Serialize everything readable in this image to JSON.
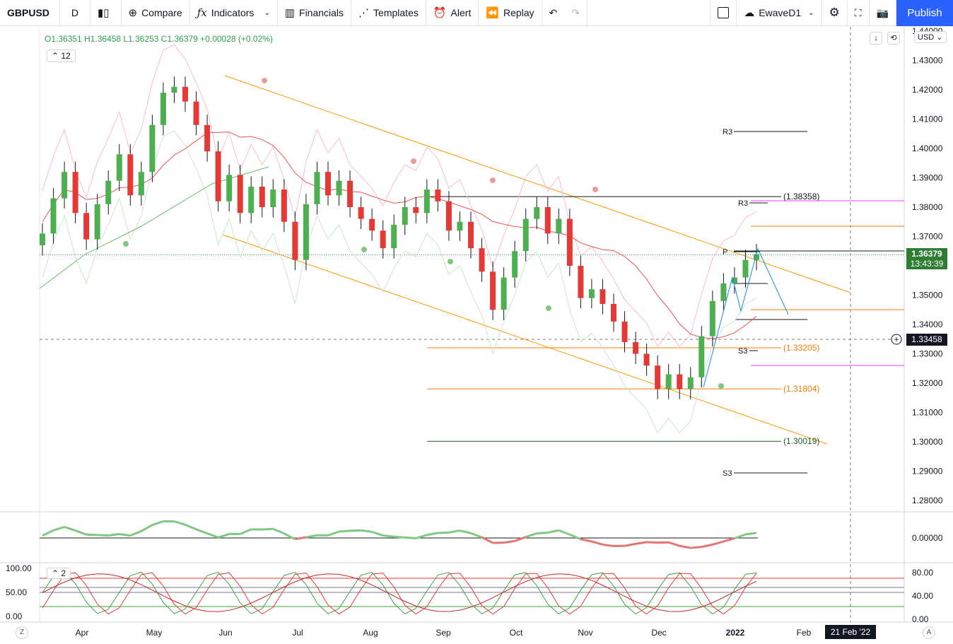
{
  "toolbar": {
    "symbol": "GBPUSD",
    "interval": "D",
    "compare": "Compare",
    "indicators": "Indicators",
    "financials": "Financials",
    "templates": "Templates",
    "alert": "Alert",
    "replay": "Replay",
    "layout_name": "EwaveD1",
    "publish": "Publish",
    "icons": [
      "candles-icon",
      "plus-circle-icon",
      "fx-icon",
      "financials-icon",
      "templates-icon",
      "alarm-icon",
      "replay-icon",
      "undo-icon",
      "redo-icon",
      "square-icon",
      "cloud-icon",
      "gear-icon",
      "fullscreen-icon",
      "camera-icon"
    ]
  },
  "legend": {
    "ohlc": "O1.36351 H1.36458 L1.36253 C1.36379 +0.00028 (+0.02%)",
    "indicator_count": "12",
    "sub_indicator_count": "2"
  },
  "price_scale": {
    "currency": "USD",
    "ticks": [
      "1.44000",
      "1.43000",
      "1.42000",
      "1.41000",
      "1.40000",
      "1.39000",
      "1.38000",
      "1.37000",
      "1.36000",
      "1.35000",
      "1.34000",
      "1.33000",
      "1.32000",
      "1.31000",
      "1.30000",
      "1.29000",
      "1.28000"
    ],
    "last_price": "1.36379",
    "countdown": "13:43:39",
    "crosshair_price": "1.33458",
    "osc_ticks": [
      "0.00000"
    ],
    "stoch_ticks_right": [
      "80.00",
      "40.00",
      "0.00"
    ],
    "stoch_ticks_left": [
      "100.00",
      "50.00",
      "0.00"
    ]
  },
  "time_scale": {
    "labels": [
      "Apr",
      "May",
      "Jun",
      "Jul",
      "Aug",
      "Sep",
      "Oct",
      "Nov",
      "Dec",
      "2022",
      "Feb"
    ],
    "crosshair_date": "21 Feb '22"
  },
  "annotations": {
    "fib_labels": [
      "(1.38358)",
      "(1.33205)",
      "(1.31804)",
      "(1.30019)"
    ],
    "pivot_labels": [
      "R3",
      "R3",
      "P",
      "S3",
      "S3"
    ]
  },
  "colors": {
    "up": "#4caf50",
    "down": "#e53935",
    "accent": "#2962ff",
    "fib": "#f57c00",
    "channel": "#ff9800",
    "magenta": "#e040fb"
  },
  "chart_data": {
    "type": "candlestick",
    "ylim": [
      1.275,
      1.445
    ],
    "x_labels": [
      "Apr",
      "May",
      "Jun",
      "Jul",
      "Aug",
      "Sep",
      "Oct",
      "Nov",
      "Dec",
      "2022",
      "Feb"
    ],
    "last": {
      "open": 1.36351,
      "high": 1.36458,
      "low": 1.36253,
      "close": 1.36379,
      "change": 0.00028,
      "change_pct": 0.02
    },
    "key_levels": [
      1.38358,
      1.33205,
      1.31804,
      1.30019
    ],
    "path_close": [
      1.371,
      1.383,
      1.392,
      1.378,
      1.369,
      1.381,
      1.389,
      1.398,
      1.384,
      1.392,
      1.408,
      1.419,
      1.421,
      1.416,
      1.408,
      1.399,
      1.382,
      1.391,
      1.378,
      1.387,
      1.38,
      1.386,
      1.375,
      1.362,
      1.381,
      1.392,
      1.384,
      1.389,
      1.38,
      1.376,
      1.372,
      1.366,
      1.374,
      1.38,
      1.378,
      1.386,
      1.382,
      1.372,
      1.375,
      1.366,
      1.358,
      1.345,
      1.356,
      1.365,
      1.376,
      1.38,
      1.371,
      1.376,
      1.36,
      1.349,
      1.352,
      1.347,
      1.341,
      1.334,
      1.33,
      1.326,
      1.318,
      1.323,
      1.318,
      1.322,
      1.336,
      1.348,
      1.354,
      1.356,
      1.362,
      1.364
    ]
  }
}
